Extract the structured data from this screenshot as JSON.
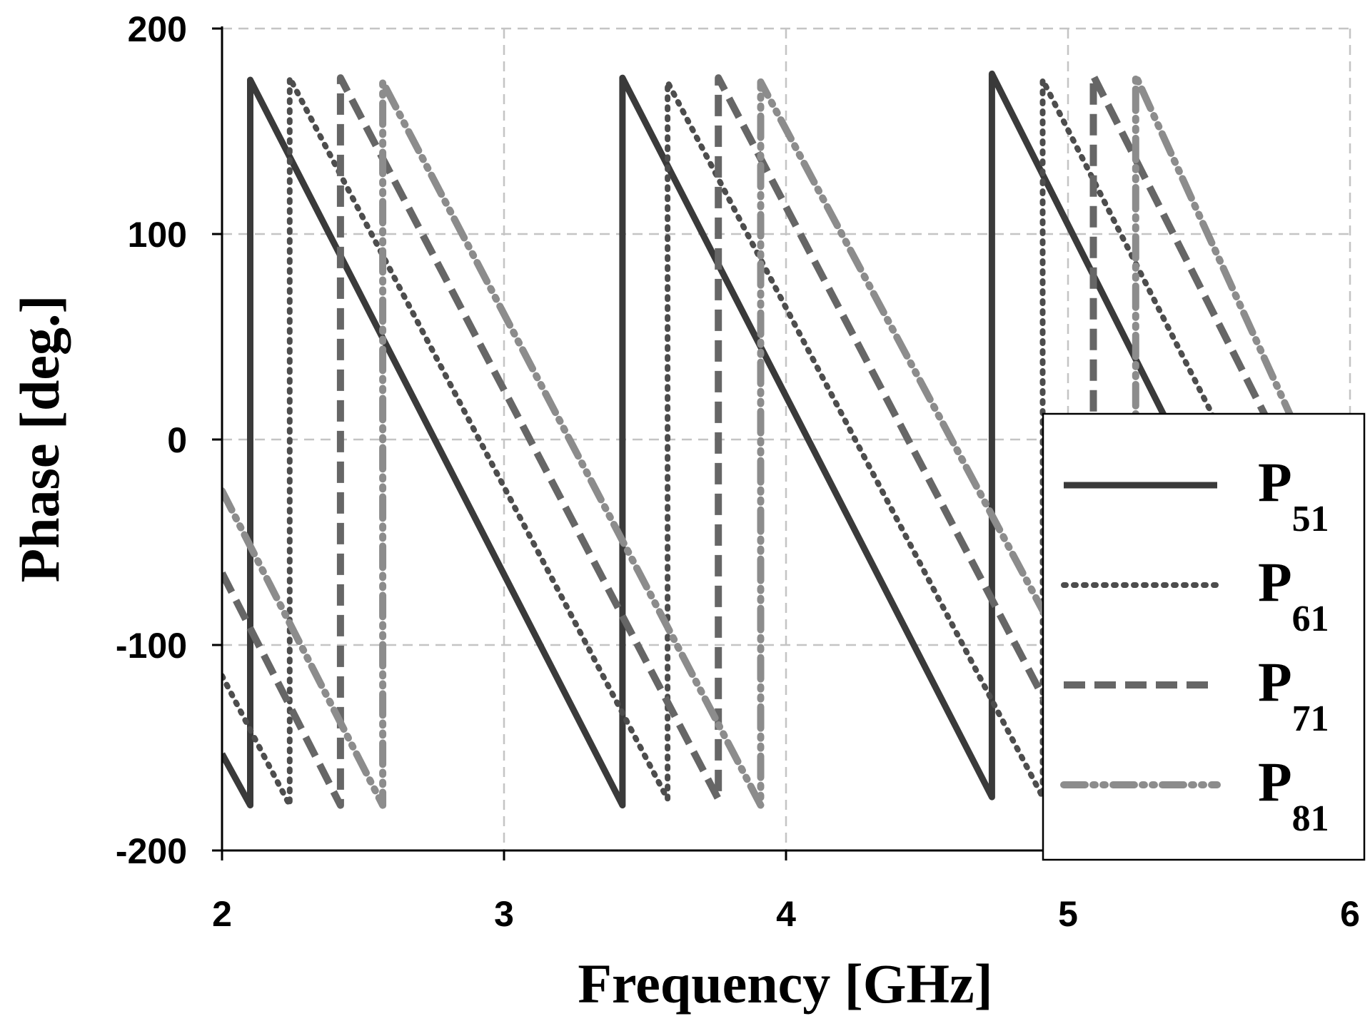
{
  "chart_data": {
    "type": "line",
    "title": "",
    "xlabel": "Frequency [GHz]",
    "ylabel": "Phase [deg.]",
    "xlim": [
      2,
      6
    ],
    "ylim": [
      -200,
      200
    ],
    "x_ticks": [
      "2",
      "3",
      "4",
      "5",
      "6"
    ],
    "y_ticks": [
      "-200",
      "-100",
      "0",
      "100",
      "200"
    ],
    "grid": true,
    "legend_position": "bottom-right",
    "series": [
      {
        "name": "P",
        "name_sub": "51",
        "color": "#3a3a3a",
        "style": "solid",
        "points": [
          [
            2.0,
            -153
          ],
          [
            2.1,
            -178
          ],
          [
            2.1,
            175
          ],
          [
            3.42,
            -178
          ],
          [
            3.42,
            176
          ],
          [
            4.73,
            -174
          ],
          [
            4.73,
            178
          ],
          [
            6.0,
            -168
          ]
        ]
      },
      {
        "name": "P",
        "name_sub": "61",
        "color": "#4d4d4d",
        "style": "dotted",
        "points": [
          [
            2.0,
            -115
          ],
          [
            2.24,
            -178
          ],
          [
            2.24,
            176
          ],
          [
            3.58,
            -175
          ],
          [
            3.58,
            174
          ],
          [
            4.91,
            -174
          ],
          [
            4.91,
            175
          ],
          [
            6.0,
            -120
          ]
        ]
      },
      {
        "name": "P",
        "name_sub": "71",
        "color": "#666666",
        "style": "dashed",
        "points": [
          [
            2.0,
            -65
          ],
          [
            2.42,
            -178
          ],
          [
            2.42,
            176
          ],
          [
            3.76,
            -175
          ],
          [
            3.76,
            176
          ],
          [
            5.09,
            -172
          ],
          [
            5.09,
            177
          ],
          [
            6.0,
            -70
          ]
        ]
      },
      {
        "name": "P",
        "name_sub": "81",
        "color": "#8c8c8c",
        "style": "dash-dot-dot",
        "points": [
          [
            2.0,
            -25
          ],
          [
            2.57,
            -178
          ],
          [
            2.57,
            174
          ],
          [
            3.91,
            -178
          ],
          [
            3.91,
            174
          ],
          [
            5.24,
            -168
          ],
          [
            5.24,
            177
          ],
          [
            6.0,
            -52
          ]
        ]
      }
    ]
  }
}
